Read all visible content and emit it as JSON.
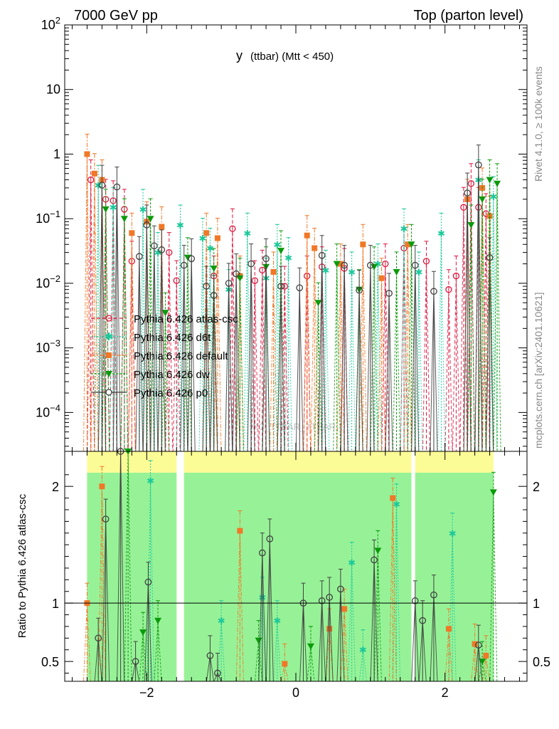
{
  "header": {
    "left_label": "7000 GeV pp",
    "right_label": "Top (parton level)",
    "plot_title": "y",
    "plot_title_suffix": "(ttbar) (Mtt < 450)",
    "watermark": "MC_TTBAR_TTBAR",
    "side_label_top": "Rivet 4.1.0, ≥ 100k events",
    "side_label_bottom": "mcplots.cern.ch [arXiv:2401.10621]"
  },
  "colors": {
    "atlas_csc": "#dc143c",
    "d6t": "#1bc89a",
    "default": "#f07828",
    "dw": "#0a9a0a",
    "p0": "#404040",
    "band_green": "#97f297",
    "band_yellow": "#fcfc97"
  },
  "chart_data": [
    {
      "type": "scatter",
      "title": "y (ttbar) (Mtt < 450)",
      "xlabel": "",
      "ylabel": "",
      "yscale": "log",
      "ylim": [
        2.5e-05,
        100
      ],
      "xlim": [
        -3.1,
        3.1
      ],
      "y_tick_labels": [
        "10^2",
        "10",
        "1",
        "10^-1",
        "10^-2",
        "10^-3",
        "10^-4"
      ],
      "x_tick_labels": [
        "−2",
        "0",
        "2"
      ],
      "legend": [
        "Pythia 6.426 atlas-csc",
        "Pythia 6.426 d6t",
        "Pythia 6.426 default",
        "Pythia 6.426 dw",
        "Pythia 6.426 p0"
      ],
      "series": [
        {
          "name": "Pythia 6.426 atlas-csc",
          "x": [
            -2.75,
            -2.55,
            -2.45,
            -2.3,
            -2.2,
            -1.7,
            -1.6,
            -1.1,
            -0.85,
            -0.55,
            -0.45,
            -0.15,
            0.15,
            0.35,
            0.65,
            1.2,
            1.45,
            1.75,
            2.05,
            2.15,
            2.25,
            2.35,
            2.45,
            2.55
          ],
          "values": [
            0.4,
            0.2,
            0.19,
            0.14,
            0.022,
            0.03,
            0.011,
            0.013,
            0.07,
            0.011,
            0.016,
            0.009,
            0.013,
            0.018,
            0.017,
            0.02,
            0.035,
            0.022,
            0.008,
            0.013,
            0.15,
            0.35,
            0.15,
            0.12
          ]
        },
        {
          "name": "Pythia 6.426 d6t",
          "x": [
            -2.65,
            -2.45,
            -2.05,
            -1.85,
            -1.55,
            -1.25,
            -1.15,
            -0.9,
            -0.65,
            -0.4,
            -0.25,
            -0.1,
            0.4,
            0.75,
            1.1,
            1.45,
            1.65,
            1.95,
            2.45,
            2.65
          ],
          "values": [
            0.33,
            0.15,
            0.14,
            0.03,
            0.08,
            0.05,
            0.035,
            0.008,
            0.06,
            0.012,
            0.04,
            0.025,
            0.016,
            0.015,
            0.02,
            0.07,
            0.015,
            0.06,
            0.4,
            0.22
          ]
        },
        {
          "name": "Pythia 6.426 default",
          "x": [
            -2.8,
            -2.7,
            -2.6,
            -2.2,
            -2.0,
            -1.8,
            -1.2,
            -1.05,
            -0.75,
            -0.3,
            0.15,
            0.25,
            0.6,
            0.9,
            1.15,
            1.5,
            2.3,
            2.5,
            2.6
          ],
          "values": [
            1.0,
            0.5,
            0.4,
            0.06,
            0.09,
            0.075,
            0.06,
            0.05,
            0.013,
            0.015,
            0.055,
            0.035,
            0.02,
            0.04,
            0.012,
            0.04,
            0.2,
            0.3,
            0.11
          ]
        },
        {
          "name": "Pythia 6.426 dw",
          "x": [
            -2.55,
            -2.3,
            -1.95,
            -1.75,
            -1.45,
            -1.1,
            -0.75,
            -0.4,
            -0.2,
            0.3,
            0.55,
            0.85,
            1.05,
            1.35,
            1.55,
            2.35,
            2.5,
            2.6,
            2.7
          ],
          "values": [
            0.14,
            0.1,
            0.1,
            0.0035,
            0.025,
            0.017,
            0.012,
            0.018,
            0.032,
            0.005,
            0.02,
            0.008,
            0.018,
            0.015,
            0.04,
            0.08,
            0.2,
            0.4,
            0.35
          ]
        },
        {
          "name": "Pythia 6.426 p0",
          "x": [
            -2.6,
            -2.4,
            -2.1,
            -2.0,
            -1.9,
            -1.8,
            -1.5,
            -1.4,
            -1.2,
            -1.1,
            -0.9,
            -0.8,
            -0.6,
            -0.4,
            -0.2,
            0.05,
            0.35,
            0.65,
            0.85,
            1.0,
            1.25,
            1.6,
            1.85,
            2.3,
            2.45,
            2.6
          ],
          "values": [
            0.33,
            0.31,
            0.026,
            0.08,
            0.038,
            0.033,
            0.019,
            0.024,
            0.009,
            0.0065,
            0.01,
            0.014,
            0.02,
            0.024,
            0.009,
            0.0085,
            0.027,
            0.019,
            0.0078,
            0.019,
            0.007,
            0.019,
            0.0075,
            0.25,
            0.68,
            0.025
          ]
        }
      ]
    },
    {
      "type": "scatter",
      "title": "",
      "xlabel": "",
      "ylabel": "Ratio to Pythia 6.426 atlas-csc",
      "ylim": [
        0.33,
        2.3
      ],
      "xlim": [
        -3.1,
        3.1
      ],
      "y_tick_labels": [
        "0.5",
        "1",
        "2"
      ],
      "x_tick_labels": [
        "−2",
        "0",
        "2"
      ],
      "band_regions": [
        [
          -2.8,
          -1.6
        ],
        [
          -1.5,
          1.55
        ],
        [
          1.6,
          2.65
        ]
      ],
      "series": [
        {
          "name": "Pythia 6.426 d6t",
          "x": [
            -1.95,
            -1.0,
            -0.45,
            -0.25,
            0.75,
            0.9,
            1.35,
            2.1
          ],
          "values": [
            2.05,
            0.85,
            1.05,
            0.85,
            1.35,
            0.6,
            1.85,
            1.6
          ]
        },
        {
          "name": "Pythia 6.426 default",
          "x": [
            -2.8,
            -2.6,
            -0.75,
            -0.15,
            0.45,
            0.65,
            1.3,
            2.05,
            2.4,
            2.55
          ],
          "values": [
            1.0,
            2.0,
            1.62,
            0.48,
            0.78,
            0.95,
            1.9,
            0.78,
            0.65,
            0.55
          ]
        },
        {
          "name": "Pythia 6.426 dw",
          "x": [
            -2.25,
            -2.05,
            -1.85,
            -0.5,
            0.2,
            1.1,
            2.5,
            2.65
          ],
          "values": [
            2.3,
            0.75,
            0.85,
            0.68,
            0.63,
            1.45,
            0.5,
            1.95
          ]
        },
        {
          "name": "Pythia 6.426 p0",
          "x": [
            -2.65,
            -2.55,
            -2.35,
            -2.15,
            -1.98,
            -1.15,
            -1.05,
            -0.45,
            -0.35,
            0.1,
            0.35,
            0.45,
            0.6,
            1.05,
            1.6,
            1.7,
            1.85,
            2.45
          ],
          "values": [
            0.7,
            1.72,
            2.3,
            0.5,
            1.18,
            0.55,
            0.4,
            1.43,
            1.55,
            1.0,
            1.02,
            1.05,
            1.12,
            1.37,
            1.02,
            0.85,
            1.07,
            0.64
          ]
        }
      ]
    }
  ]
}
